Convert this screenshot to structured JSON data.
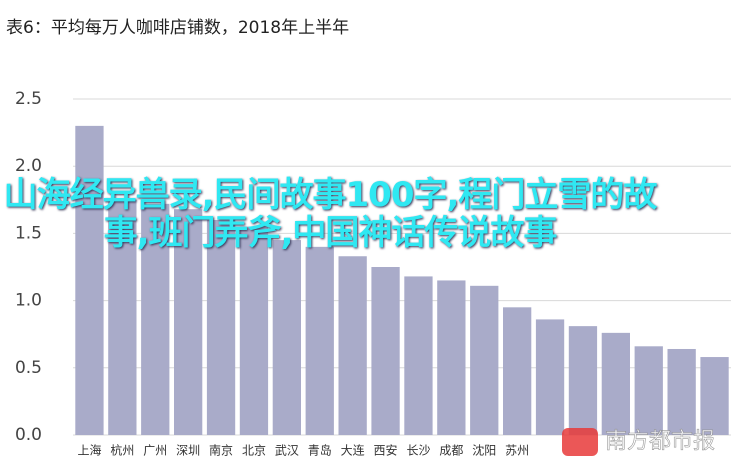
{
  "chart_data": {
    "type": "bar",
    "title": "表6：平均每万人咖啡店铺数，2018年上半年",
    "overlay_text": "山海经异兽录,民间故事100字,程门立雪的故事,班门弄斧,中国神话传说故事",
    "watermark": "南方都市报",
    "categories": [
      "上海",
      "杭州",
      "广州",
      "深圳",
      "南京",
      "北京",
      "武汉",
      "青岛",
      "大连",
      "西安",
      "长沙",
      "成都",
      "沈阳",
      "苏州",
      null,
      null,
      null,
      null,
      null,
      null
    ],
    "values": [
      2.3,
      1.75,
      1.72,
      1.68,
      1.6,
      1.55,
      1.45,
      1.4,
      1.33,
      1.25,
      1.18,
      1.15,
      1.11,
      0.95,
      0.86,
      0.81,
      0.76,
      0.66,
      0.64,
      0.58
    ],
    "color": "#a9abc9",
    "ylim": [
      0,
      2.5
    ],
    "yticks": [
      {
        "value": 0,
        "label": "0.0"
      },
      0.5,
      {
        "value": 1,
        "label": "1.0"
      },
      1.5,
      {
        "value": 2,
        "label": "2.0"
      },
      2.5
    ],
    "grid": true
  }
}
